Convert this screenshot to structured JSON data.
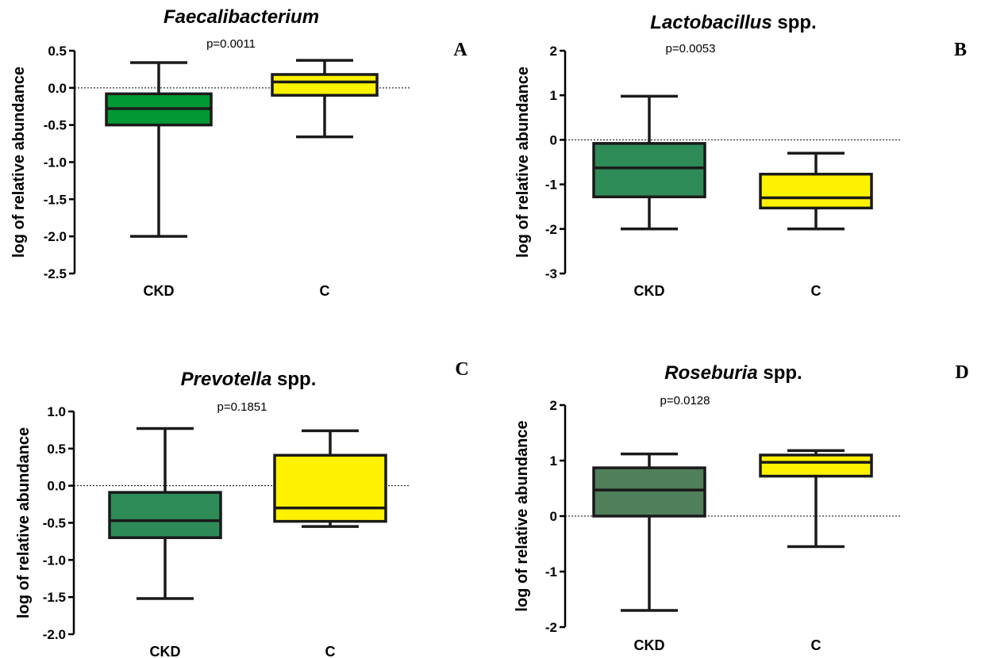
{
  "chart_data": [
    {
      "type": "box",
      "panel_label": "A",
      "title_italic": "Faecalibacterium",
      "title_rest": "",
      "p_value": "p=0.0011",
      "ylabel": "log of relative abundance",
      "ylim": [
        -2.5,
        0.5
      ],
      "yticks": [
        0.5,
        0.0,
        -0.5,
        -1.0,
        -1.5,
        -2.0,
        -2.5
      ],
      "ytick_labels": [
        "0.5",
        "0.0",
        "-0.5",
        "-1.0",
        "-1.5",
        "-2.0",
        "-2.5"
      ],
      "reference_line": 0,
      "categories": [
        "CKD",
        "C"
      ],
      "boxes": [
        {
          "category": "CKD",
          "min": -2.0,
          "q1": -0.5,
          "median": -0.28,
          "q3": -0.08,
          "max": 0.34,
          "color": "#009933"
        },
        {
          "category": "C",
          "min": -0.66,
          "q1": -0.1,
          "median": 0.08,
          "q3": 0.18,
          "max": 0.37,
          "color": "#FFF200"
        }
      ]
    },
    {
      "type": "box",
      "panel_label": "B",
      "title_italic": "Lactobacillus",
      "title_rest": " spp.",
      "p_value": "p=0.0053",
      "ylabel": "log of relative abundance",
      "ylim": [
        -3,
        2
      ],
      "yticks": [
        2,
        1,
        0,
        -1,
        -2,
        -3
      ],
      "ytick_labels": [
        "2",
        "1",
        "0",
        "-1",
        "-2",
        "-3"
      ],
      "reference_line": 0,
      "categories": [
        "CKD",
        "C"
      ],
      "boxes": [
        {
          "category": "CKD",
          "min": -2.0,
          "q1": -1.28,
          "median": -0.63,
          "q3": -0.08,
          "max": 0.98,
          "color": "#2E8B57"
        },
        {
          "category": "C",
          "min": -2.0,
          "q1": -1.53,
          "median": -1.3,
          "q3": -0.77,
          "max": -0.3,
          "color": "#FFF200"
        }
      ]
    },
    {
      "type": "box",
      "panel_label": "C",
      "title_italic": "Prevotella",
      "title_rest": " spp.",
      "p_value": "p=0.1851",
      "ylabel": "log of relative abundance",
      "ylim": [
        -2.0,
        1.0
      ],
      "yticks": [
        1.0,
        0.5,
        0.0,
        -0.5,
        -1.0,
        -1.5,
        -2.0
      ],
      "ytick_labels": [
        "1.0",
        "0.5",
        "0.0",
        "-0.5",
        "-1.0",
        "-1.5",
        "-2.0"
      ],
      "reference_line": 0,
      "categories": [
        "CKD",
        "C"
      ],
      "boxes": [
        {
          "category": "CKD",
          "min": -1.52,
          "q1": -0.7,
          "median": -0.47,
          "q3": -0.09,
          "max": 0.77,
          "color": "#2E8B57"
        },
        {
          "category": "C",
          "min": -0.55,
          "q1": -0.48,
          "median": -0.3,
          "q3": 0.41,
          "max": 0.74,
          "color": "#FFF200"
        }
      ]
    },
    {
      "type": "box",
      "panel_label": "D",
      "title_italic": "Roseburia",
      "title_rest": " spp.",
      "p_value": "p=0.0128",
      "ylabel": "log of relative abundance",
      "ylim": [
        -2,
        2
      ],
      "yticks": [
        2,
        1,
        0,
        -1,
        -2
      ],
      "ytick_labels": [
        "2",
        "1",
        "0",
        "-1",
        "-2"
      ],
      "reference_line": 0,
      "categories": [
        "CKD",
        "C"
      ],
      "boxes": [
        {
          "category": "CKD",
          "min": -1.7,
          "q1": 0.0,
          "median": 0.47,
          "q3": 0.87,
          "max": 1.12,
          "color": "#4F7F5B"
        },
        {
          "category": "C",
          "min": -0.55,
          "q1": 0.72,
          "median": 0.97,
          "q3": 1.1,
          "max": 1.18,
          "color": "#FFF200"
        }
      ]
    }
  ]
}
